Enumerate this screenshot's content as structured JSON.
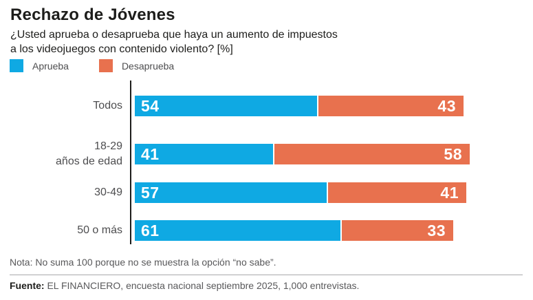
{
  "header": {
    "title": "Rechazo de Jóvenes",
    "subtitle_line1": "¿Usted aprueba o desaprueba que haya un aumento de impuestos",
    "subtitle_line2": "a los videojuegos con contenido violento?  [%]"
  },
  "legend": [
    {
      "label": "Aprueba",
      "color": "#0fa9e3"
    },
    {
      "label": "Desaprueba",
      "color": "#e8714e"
    }
  ],
  "chart_data": {
    "type": "bar",
    "orientation": "horizontal",
    "grouping": "stacked",
    "title": "Rechazo de Jóvenes",
    "xlabel": "",
    "ylabel": "",
    "xlim": [
      0,
      100
    ],
    "unit": "%",
    "grid": false,
    "legend_position": "top-left",
    "value_labels": "inside",
    "categories": [
      "Todos",
      "18-29 años de edad",
      "30-49",
      "50 o más"
    ],
    "category_display": [
      [
        "Todos"
      ],
      [
        "18-29",
        "años de edad"
      ],
      [
        "30-49"
      ],
      [
        "50 o más"
      ]
    ],
    "series": [
      {
        "name": "Aprueba",
        "color": "#0fa9e3",
        "values": [
          54,
          41,
          57,
          61
        ]
      },
      {
        "name": "Desaprueba",
        "color": "#e8714e",
        "values": [
          43,
          58,
          41,
          33
        ]
      }
    ],
    "axis_color": "#1d1d1b"
  },
  "footer": {
    "note": "Nota: No suma 100 porque no se muestra la opción “no sabe”.",
    "source_label": "Fuente:",
    "source_text": " EL FINANCIERO, encuesta nacional septiembre 2025, 1,000 entrevistas."
  }
}
